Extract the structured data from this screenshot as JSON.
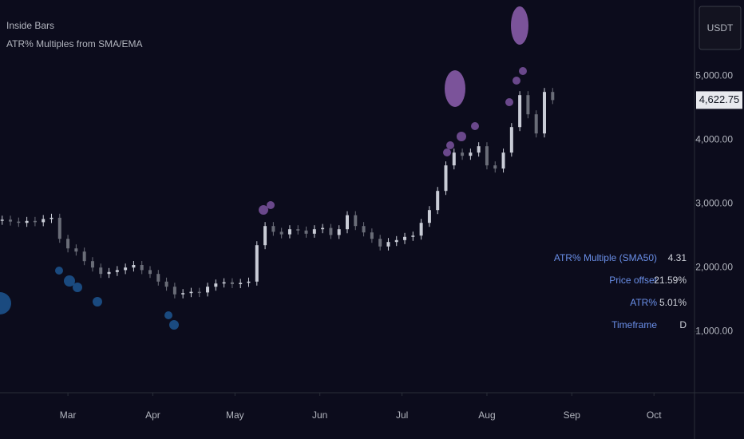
{
  "chart_data": {
    "type": "candlestick",
    "title": "Inside Bars",
    "subtitle": "ATR% Multiples from SMA/EMA",
    "currency": "USDT",
    "x": [
      -24,
      -21,
      -18,
      -15,
      -12,
      -9,
      -6,
      -3,
      0,
      3,
      6,
      9,
      12,
      15,
      18,
      21,
      24,
      27,
      30,
      33,
      36,
      39,
      42,
      45,
      48,
      51,
      54,
      57,
      60,
      63,
      66,
      69,
      72,
      75,
      78,
      81,
      84,
      87,
      90,
      93,
      96,
      99,
      102,
      105,
      108,
      111,
      114,
      117,
      120,
      123,
      126,
      129,
      132,
      135,
      138,
      141,
      144,
      147,
      150,
      153,
      156,
      159,
      162,
      165,
      168,
      171,
      174,
      177
    ],
    "values": [
      2750,
      2720,
      2700,
      2730,
      2710,
      2760,
      2780,
      2450,
      2300,
      2250,
      2100,
      2000,
      1900,
      1930,
      1960,
      2000,
      2040,
      1960,
      1900,
      1780,
      1700,
      1580,
      1600,
      1620,
      1610,
      1700,
      1750,
      1770,
      1740,
      1760,
      1780,
      2350,
      2650,
      2560,
      2520,
      2600,
      2580,
      2530,
      2600,
      2620,
      2510,
      2600,
      2820,
      2650,
      2550,
      2450,
      2330,
      2400,
      2430,
      2480,
      2500,
      2700,
      2900,
      3200,
      3600,
      3800,
      3750,
      3800,
      3900,
      3600,
      3550,
      3800,
      4200,
      4700,
      4400,
      4100,
      4750,
      4622.75
    ],
    "up_color": "#c9ccd6",
    "down_color": "#6a6d78",
    "last_price": {
      "value": 4622.75,
      "label": "4,622.75"
    },
    "xlim": [
      -24.8,
      228.8
    ],
    "xticks": [
      {
        "value": 0,
        "label": "Mar"
      },
      {
        "value": 31,
        "label": "Apr"
      },
      {
        "value": 61,
        "label": "May"
      },
      {
        "value": 92,
        "label": "Jun"
      },
      {
        "value": 122,
        "label": "Jul"
      },
      {
        "value": 153,
        "label": "Aug"
      },
      {
        "value": 184,
        "label": "Sep"
      },
      {
        "value": 214,
        "label": "Oct"
      }
    ],
    "ylim": [
      40,
      6190
    ],
    "yticks": [
      {
        "value": 1000,
        "label": "1,000.00"
      },
      {
        "value": 2000,
        "label": "2,000.00"
      },
      {
        "value": 3000,
        "label": "3,000.00"
      },
      {
        "value": 4000,
        "label": "4,000.00"
      },
      {
        "value": 5000,
        "label": "5,000.00"
      }
    ],
    "grid": false,
    "table": [
      [
        "ATR% Multiple (SMA50)",
        "4.31"
      ],
      [
        "Price offset",
        "21.59%"
      ],
      [
        "ATR%",
        "5.01%"
      ],
      [
        "Timeframe",
        "D"
      ]
    ]
  }
}
